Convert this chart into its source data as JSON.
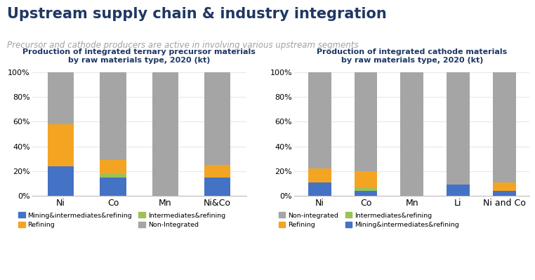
{
  "title": "Upstream supply chain & industry integration",
  "subtitle": "Precursor and cathode producers are active in involving various upstream segments",
  "left_chart": {
    "title": "Production of integrated ternary precursor materials\nby raw materials type, 2020 (kt)",
    "categories": [
      "Ni",
      "Co",
      "Mn",
      "Ni&Co"
    ],
    "series": {
      "Mining&intermediates&refining": [
        24,
        15,
        0,
        15
      ],
      "Intermediates&refining": [
        0,
        3,
        0,
        0
      ],
      "Refining": [
        34,
        11,
        0,
        10
      ],
      "Non-Integrated": [
        42,
        71,
        100,
        75
      ]
    },
    "colors": {
      "Mining&intermediates&refining": "#4472C4",
      "Intermediates&refining": "#9DC157",
      "Refining": "#F4A423",
      "Non-Integrated": "#A5A5A5"
    },
    "stack_order": [
      "Mining&intermediates&refining",
      "Intermediates&refining",
      "Refining",
      "Non-Integrated"
    ],
    "legend_handles": [
      {
        "label": "Mining&intermediates&refining",
        "color": "#4472C4"
      },
      {
        "label": "Intermediates&refining",
        "color": "#9DC157"
      },
      {
        "label": "Refining",
        "color": "#F4A423"
      },
      {
        "label": "Non-Integrated",
        "color": "#A5A5A5"
      }
    ]
  },
  "right_chart": {
    "title": "Production of integrated cathode materials\nby raw materials type, 2020 (kt)",
    "categories": [
      "Ni",
      "Co",
      "Mn",
      "Li",
      "Ni and Co"
    ],
    "series": {
      "Mining&intermediates&refining": [
        11,
        4,
        0,
        9,
        4
      ],
      "Intermediates&refining": [
        0,
        3,
        0,
        0,
        0
      ],
      "Refining": [
        11,
        13,
        0,
        0,
        7
      ],
      "Non-Integrated": [
        78,
        80,
        100,
        91,
        89
      ]
    },
    "colors": {
      "Mining&intermediates&refining": "#4472C4",
      "Intermediates&refining": "#9DC157",
      "Refining": "#F4A423",
      "Non-Integrated": "#A5A5A5"
    },
    "stack_order": [
      "Mining&intermediates&refining",
      "Intermediates&refining",
      "Refining",
      "Non-Integrated"
    ],
    "legend_handles": [
      {
        "label": "Non-integrated",
        "color": "#A5A5A5"
      },
      {
        "label": "Refining",
        "color": "#F4A423"
      },
      {
        "label": "Intermediates&refining",
        "color": "#9DC157"
      },
      {
        "label": "Mining&intermediates&refining",
        "color": "#4472C4"
      }
    ]
  },
  "bg_color": "#FFFFFF",
  "title_color": "#1F3864",
  "subtitle_color": "#A0A0A0",
  "chart_title_color": "#1F3864",
  "grid_color": "#E8E8E8",
  "tick_label_fontsize": 8,
  "bar_width": 0.5
}
